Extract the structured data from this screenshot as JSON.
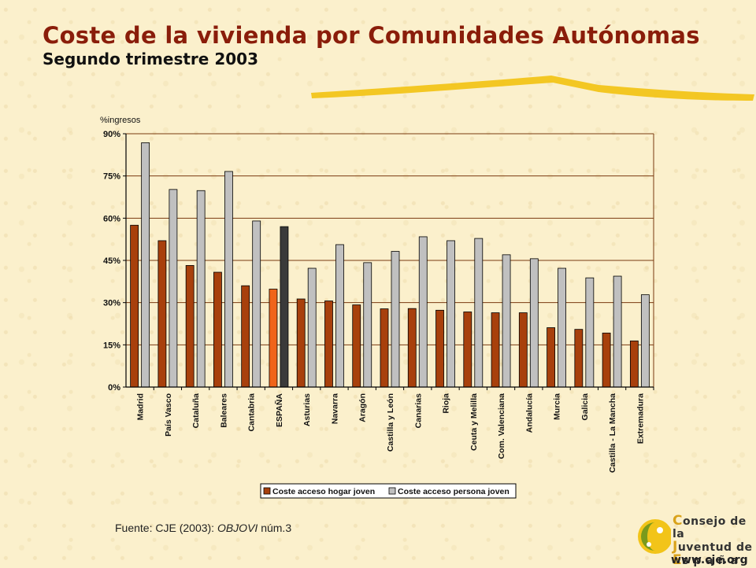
{
  "header": {
    "title": "Coste de la vivienda por Comunidades Autónomas",
    "subtitle": "Segundo trimestre 2003"
  },
  "footer": {
    "source_prefix": "Fuente: CJE (2003): ",
    "source_italic": "OBJOVI",
    "source_suffix": " núm.3"
  },
  "logo": {
    "line1_cap": "C",
    "line1_rest": "onsejo de la",
    "line2_cap": "J",
    "line2_rest": "uventud de",
    "line3_cap": "E",
    "line3_rest": "s p a ñ a",
    "url": "www.cje.org"
  },
  "colors": {
    "hogar": "#a8400c",
    "persona": "#c0c0c0",
    "espana_hogar": "#f0641a",
    "espana_persona": "#3a3a3a",
    "grid": "#7a3a10",
    "title": "#8a1d0a"
  },
  "chart_data": {
    "type": "bar",
    "ylabel": "%ingresos",
    "ylim": [
      0,
      90
    ],
    "yticks": [
      0,
      15,
      30,
      45,
      60,
      75,
      90
    ],
    "ytick_labels": [
      "0%",
      "15%",
      "30%",
      "45%",
      "60%",
      "75%",
      "90%"
    ],
    "categories": [
      "Madrid",
      "País Vasco",
      "Cataluña",
      "Baleares",
      "Cantabria",
      "ESPAÑA",
      "Asturias",
      "Navarra",
      "Aragón",
      "Castilla y León",
      "Canarias",
      "Rioja",
      "Ceuta y Melilla",
      "Com. Valenciana",
      "Andalucía",
      "Murcia",
      "Galicia",
      "Castilla - La Mancha",
      "Extremadura"
    ],
    "highlight_category": "ESPAÑA",
    "series": [
      {
        "name": "Coste acceso hogar joven",
        "values": [
          57.5,
          52.0,
          43.2,
          40.8,
          36.0,
          34.8,
          31.3,
          30.6,
          29.2,
          27.8,
          27.9,
          27.3,
          26.7,
          26.4,
          26.4,
          21.1,
          20.5,
          19.2,
          16.4
        ]
      },
      {
        "name": "Coste acceso persona joven",
        "values": [
          86.8,
          70.2,
          69.8,
          76.6,
          59.0,
          57.0,
          42.2,
          50.6,
          44.2,
          48.2,
          53.4,
          52.0,
          52.8,
          47.0,
          45.6,
          42.2,
          38.8,
          39.4,
          32.8
        ]
      }
    ],
    "legend_position": "bottom-right"
  }
}
